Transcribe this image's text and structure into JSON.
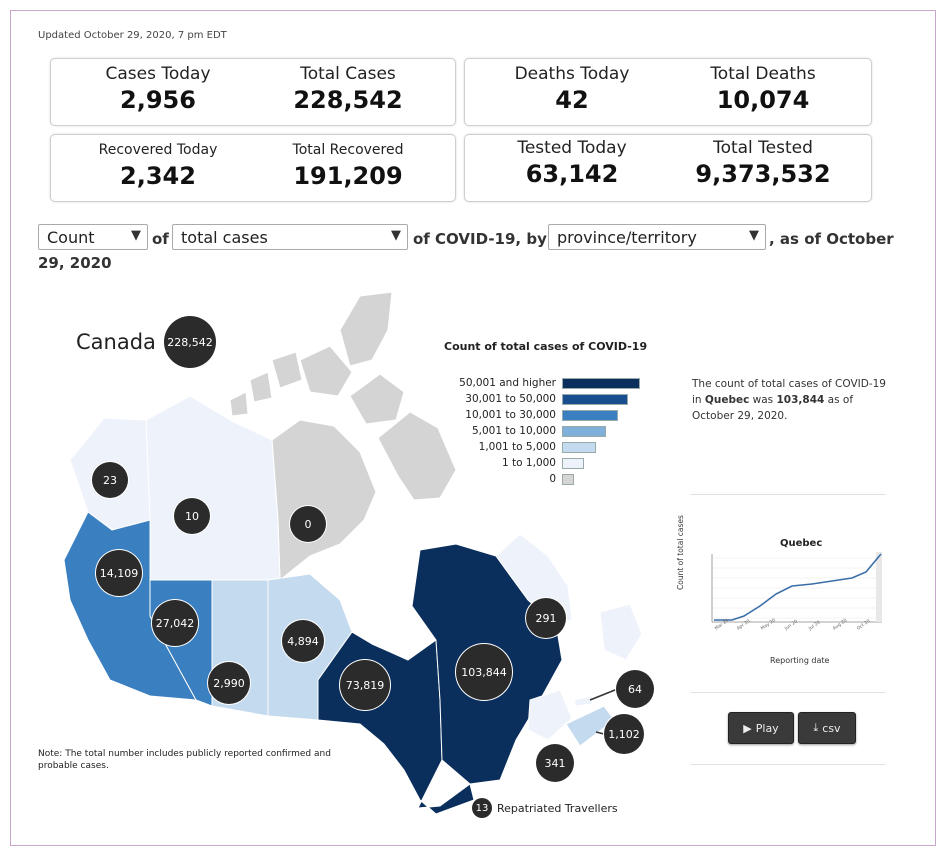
{
  "updated": "Updated October 29, 2020, 7 pm EDT",
  "stats": {
    "cases_today": {
      "label": "Cases Today",
      "value": "2,956"
    },
    "total_cases": {
      "label": "Total Cases",
      "value": "228,542"
    },
    "deaths_today": {
      "label": "Deaths Today",
      "value": "42"
    },
    "total_deaths": {
      "label": "Total Deaths",
      "value": "10,074"
    },
    "recovered_today": {
      "label": "Recovered Today",
      "value": "2,342"
    },
    "total_recovered": {
      "label": "Total Recovered",
      "value": "191,209"
    },
    "tested_today": {
      "label": "Tested Today",
      "value": "63,142"
    },
    "total_tested": {
      "label": "Total Tested",
      "value": "9,373,532"
    }
  },
  "controls": {
    "measure": "Count",
    "of": "of",
    "metric": "total cases",
    "of_covid": "of COVID-19, by",
    "geo": "province/territory",
    "as_of": ", as of October",
    "date": "29, 2020"
  },
  "map": {
    "canada_label": "Canada",
    "canada_total": "228,542",
    "regions": {
      "yukon": "23",
      "nwt": "10",
      "nunavut": "0",
      "bc": "14,109",
      "alberta": "27,042",
      "saskatchewan": "2,990",
      "manitoba": "4,894",
      "ontario": "73,819",
      "quebec": "103,844",
      "nl": "291",
      "pei": "64",
      "ns": "1,102",
      "nb": "341"
    },
    "repatriated_count": "13",
    "repatriated_label": "Repatriated Travellers",
    "note": "Note: The total number includes publicly reported confirmed and probable cases."
  },
  "legend": {
    "title": "Count of total cases of COVID-19",
    "items": [
      {
        "label": "50,001 and higher",
        "color": "#0b2f5c"
      },
      {
        "label": "30,001 to 50,000",
        "color": "#1a4f8f"
      },
      {
        "label": "10,001 to 30,000",
        "color": "#3a7fc0"
      },
      {
        "label": "5,001 to 10,000",
        "color": "#7fb0da"
      },
      {
        "label": "1,001 to 5,000",
        "color": "#c4daee"
      },
      {
        "label": "1 to 1,000",
        "color": "#eef3fb"
      },
      {
        "label": "0",
        "color": "#d4d4d4"
      }
    ]
  },
  "description": {
    "pre": "The count of total cases of COVID-19 in ",
    "province": "Quebec",
    "mid": " was ",
    "value": "103,844",
    "post": " as of October 29, 2020."
  },
  "mini_chart": {
    "title": "Quebec",
    "ylabel": "Count of total cases",
    "xlabel": "Reporting date"
  },
  "buttons": {
    "play": "Play",
    "csv": "csv"
  },
  "colors": {
    "quebec_ontario": "#0b2f5c",
    "bc": "#3a7fc0",
    "alberta": "#3a7fc0",
    "prairies": "#c4daee",
    "north_light": "#eef3fb",
    "nunavut": "#d4d4d4"
  }
}
